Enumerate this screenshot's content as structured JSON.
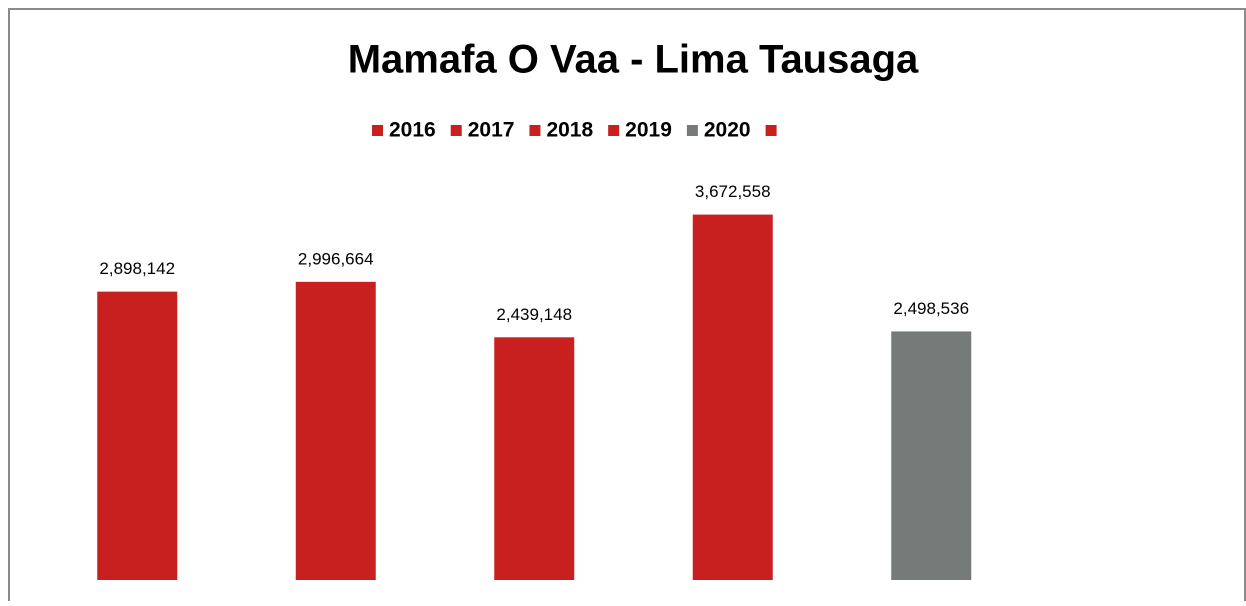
{
  "chart_data": {
    "type": "bar",
    "title": "Mamafa O Vaa - Lima Tausaga",
    "series": [
      {
        "name": "2016",
        "color": "#c8201f",
        "values": [
          2898142
        ],
        "value_labels": [
          "2,898,142"
        ]
      },
      {
        "name": "2017",
        "color": "#c8201f",
        "values": [
          2996664
        ],
        "value_labels": [
          "2,996,664"
        ]
      },
      {
        "name": "2018",
        "color": "#c8201f",
        "values": [
          2439148
        ],
        "value_labels": [
          "2,439,148"
        ]
      },
      {
        "name": "2019",
        "color": "#c8201f",
        "values": [
          3672558
        ],
        "value_labels": [
          "3,672,558"
        ]
      },
      {
        "name": "2020",
        "color": "#767b7a",
        "values": [
          2498536
        ],
        "value_labels": [
          "2,498,536"
        ]
      },
      {
        "name": null,
        "color": "#c8201f",
        "values": [
          null
        ]
      }
    ],
    "ylim": [
      0,
      4000000
    ],
    "grid": false,
    "legend": "top"
  }
}
